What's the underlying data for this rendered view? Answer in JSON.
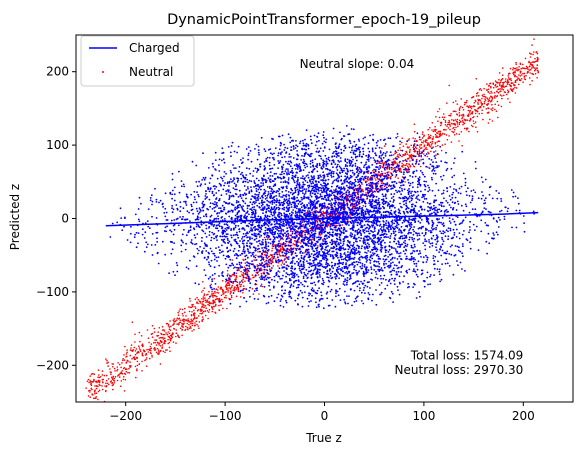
{
  "chart_data": {
    "type": "scatter",
    "title": "DynamicPointTransformer_epoch-19_pileup",
    "xlabel": "True z",
    "ylabel": "Predicted z",
    "xlim": [
      -250,
      250
    ],
    "ylim": [
      -250,
      250
    ],
    "xticks": [
      -200,
      -100,
      0,
      100,
      200
    ],
    "yticks": [
      -200,
      -100,
      0,
      100,
      200
    ],
    "xtick_labels": [
      "−200",
      "−100",
      "0",
      "100",
      "200"
    ],
    "ytick_labels": [
      "−200",
      "−100",
      "0",
      "100",
      "200"
    ],
    "grid": false,
    "legend": {
      "placement": "top-left",
      "entries": [
        "Charged",
        "Neutral"
      ]
    },
    "colors": {
      "charged": "#0000ff",
      "neutral": "#ff0000"
    },
    "series": [
      {
        "name": "Charged",
        "kind": "line",
        "x": [
          -220,
          -180,
          -120,
          -60,
          0,
          60,
          120,
          180,
          215
        ],
        "y": [
          -10,
          -8,
          -5,
          -2,
          0,
          2,
          4,
          6,
          8
        ]
      },
      {
        "name": "Charged",
        "kind": "scatter-cloud",
        "x_range": [
          -220,
          215
        ],
        "y_center_at_x": [
          [
            -220,
            -10
          ],
          [
            -150,
            -7
          ],
          [
            0,
            0
          ],
          [
            150,
            5
          ],
          [
            215,
            8
          ]
        ],
        "y_spread_at_x": [
          [
            -220,
            20
          ],
          [
            -150,
            80
          ],
          [
            -100,
            115
          ],
          [
            0,
            130
          ],
          [
            100,
            115
          ],
          [
            150,
            80
          ],
          [
            215,
            20
          ]
        ]
      },
      {
        "name": "Neutral",
        "kind": "scatter-cloud",
        "x_range": [
          -240,
          215
        ],
        "y_equals_x_band": 25
      }
    ],
    "annotations": [
      {
        "id": "slope",
        "text": "Neutral slope: 0.04",
        "x": -25,
        "y": 205
      },
      {
        "id": "total",
        "text": "Total loss: 1574.09",
        "x": 200,
        "y": -192
      },
      {
        "id": "neutral",
        "text": "Neutral loss: 2970.30",
        "x": 200,
        "y": -212
      }
    ]
  }
}
